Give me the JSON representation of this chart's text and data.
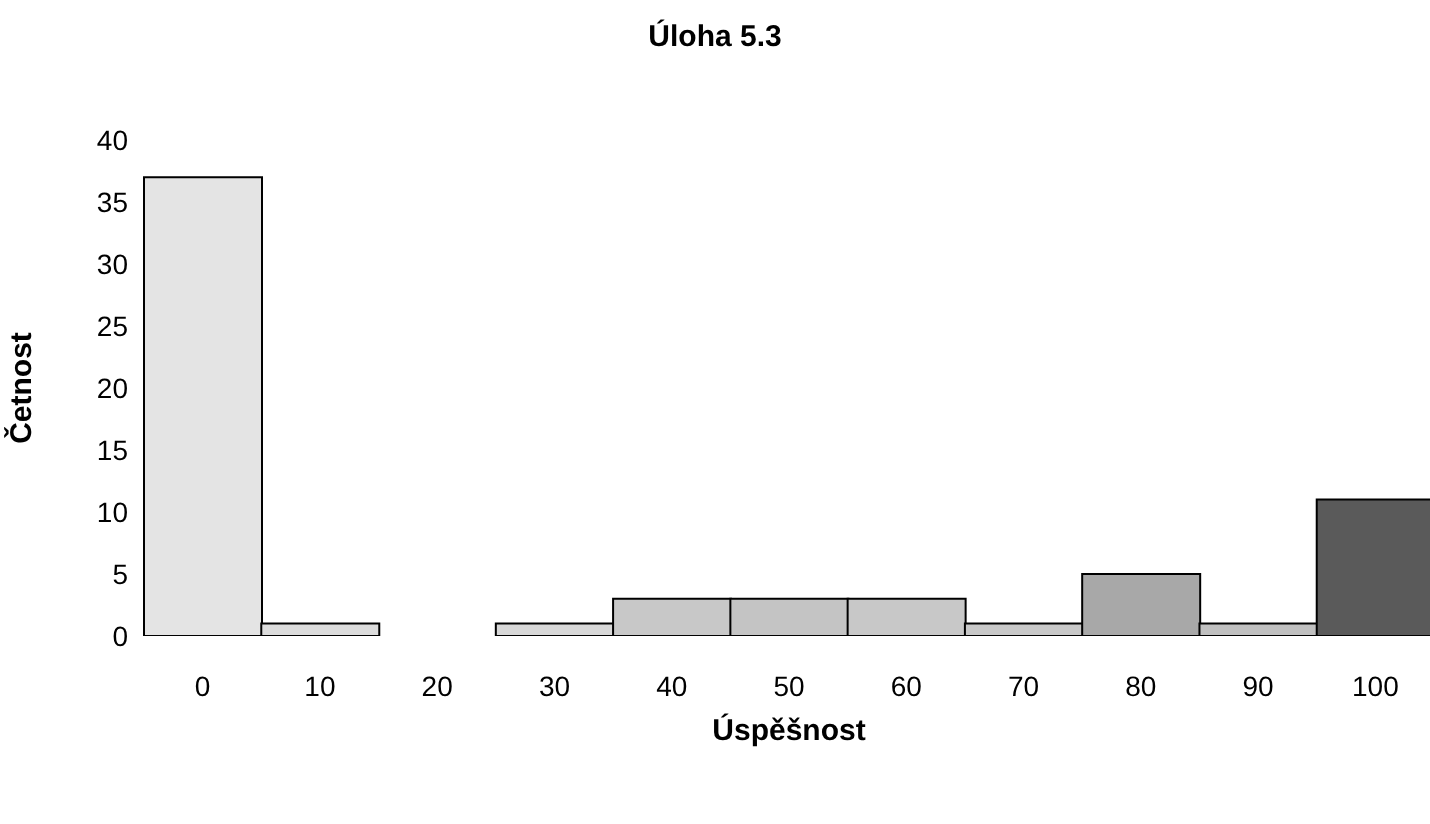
{
  "chart_data": {
    "type": "bar",
    "title": "Úloha 5.3",
    "xlabel": "Úspěšnost",
    "ylabel": "Četnost",
    "categories": [
      "0",
      "10",
      "20",
      "30",
      "40",
      "50",
      "60",
      "70",
      "80",
      "90",
      "100"
    ],
    "values": [
      37,
      1,
      0,
      1,
      3,
      3,
      3,
      1,
      5,
      1,
      11
    ],
    "colors": [
      "#e4e4e4",
      "#dcdcdc",
      "#dcdcdc",
      "#d8d8d8",
      "#c8c8c8",
      "#c4c4c4",
      "#c8c8c8",
      "#c8c8c8",
      "#a8a8a8",
      "#c0c0c0",
      "#5a5a5a"
    ],
    "ylim": [
      0,
      40
    ],
    "yticks": [
      0,
      5,
      10,
      15,
      20,
      25,
      30,
      35,
      40
    ],
    "grid": false,
    "legend": false
  }
}
